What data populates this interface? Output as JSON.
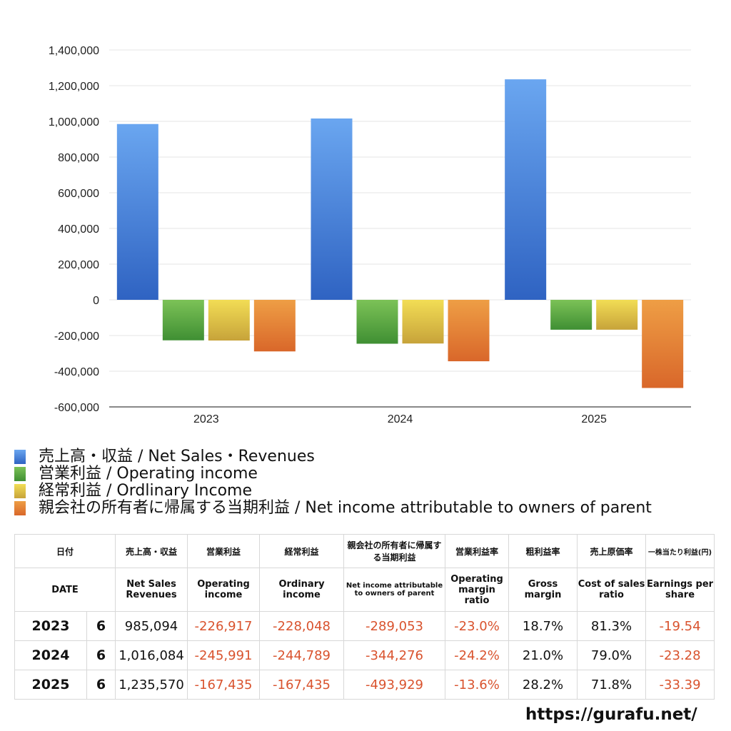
{
  "chart_data": {
    "type": "bar",
    "categories": [
      "2023",
      "2024",
      "2025"
    ],
    "ylim": [
      -600000,
      1400000
    ],
    "yticks": [
      "1,400,000",
      "1,200,000",
      "1,000,000",
      "800,000",
      "600,000",
      "400,000",
      "200,000",
      "0",
      "-200,000",
      "-400,000",
      "-600,000"
    ],
    "ytick_values": [
      1400000,
      1200000,
      1000000,
      800000,
      600000,
      400000,
      200000,
      0,
      -200000,
      -400000,
      -600000
    ],
    "grid": true,
    "legend_position": "bottom",
    "series": [
      {
        "name": "売上高・収益 / Net Sales・Revenues",
        "color": "#3b7de0",
        "values": [
          985094,
          1016084,
          1235570
        ]
      },
      {
        "name": "営業利益 / Operating income",
        "color": "#5aa83e",
        "values": [
          -226917,
          -245991,
          -167435
        ]
      },
      {
        "name": "経常利益 / Ordlinary Income",
        "color": "#e3c53a",
        "values": [
          -228048,
          -244789,
          -167435
        ]
      },
      {
        "name": "親会社の所有者に帰属する当期利益 / Net income attributable to owners of parent",
        "color": "#e0792f",
        "values": [
          -289053,
          -344276,
          -493929
        ]
      }
    ]
  },
  "table": {
    "headers_jp": [
      "日付",
      "売上高・収益",
      "営業利益",
      "経常利益",
      "親会社の所有者に帰属する当期利益",
      "営業利益率",
      "粗利益率",
      "売上原価率",
      "一株当たり利益(円)"
    ],
    "headers_en": [
      "DATE",
      "Net Sales Revenues",
      "Operating income",
      "Ordinary income",
      "Net income attributable to owners of parent",
      "Operating margin ratio",
      "Gross margin",
      "Cost of sales ratio",
      "Earnings per share"
    ],
    "rows": [
      {
        "year": "2023",
        "period": "6",
        "sales": "985,094",
        "op": "-226,917",
        "ord": "-228,048",
        "net": "-289,053",
        "opm": "-23.0%",
        "gm": "18.7%",
        "cos": "81.3%",
        "eps": "-19.54"
      },
      {
        "year": "2024",
        "period": "6",
        "sales": "1,016,084",
        "op": "-245,991",
        "ord": "-244,789",
        "net": "-344,276",
        "opm": "-24.2%",
        "gm": "21.0%",
        "cos": "79.0%",
        "eps": "-23.28"
      },
      {
        "year": "2025",
        "period": "6",
        "sales": "1,235,570",
        "op": "-167,435",
        "ord": "-167,435",
        "net": "-493,929",
        "opm": "-13.6%",
        "gm": "28.2%",
        "cos": "71.8%",
        "eps": "-33.39"
      }
    ]
  },
  "footer": {
    "site": "https://gurafu.net/"
  }
}
